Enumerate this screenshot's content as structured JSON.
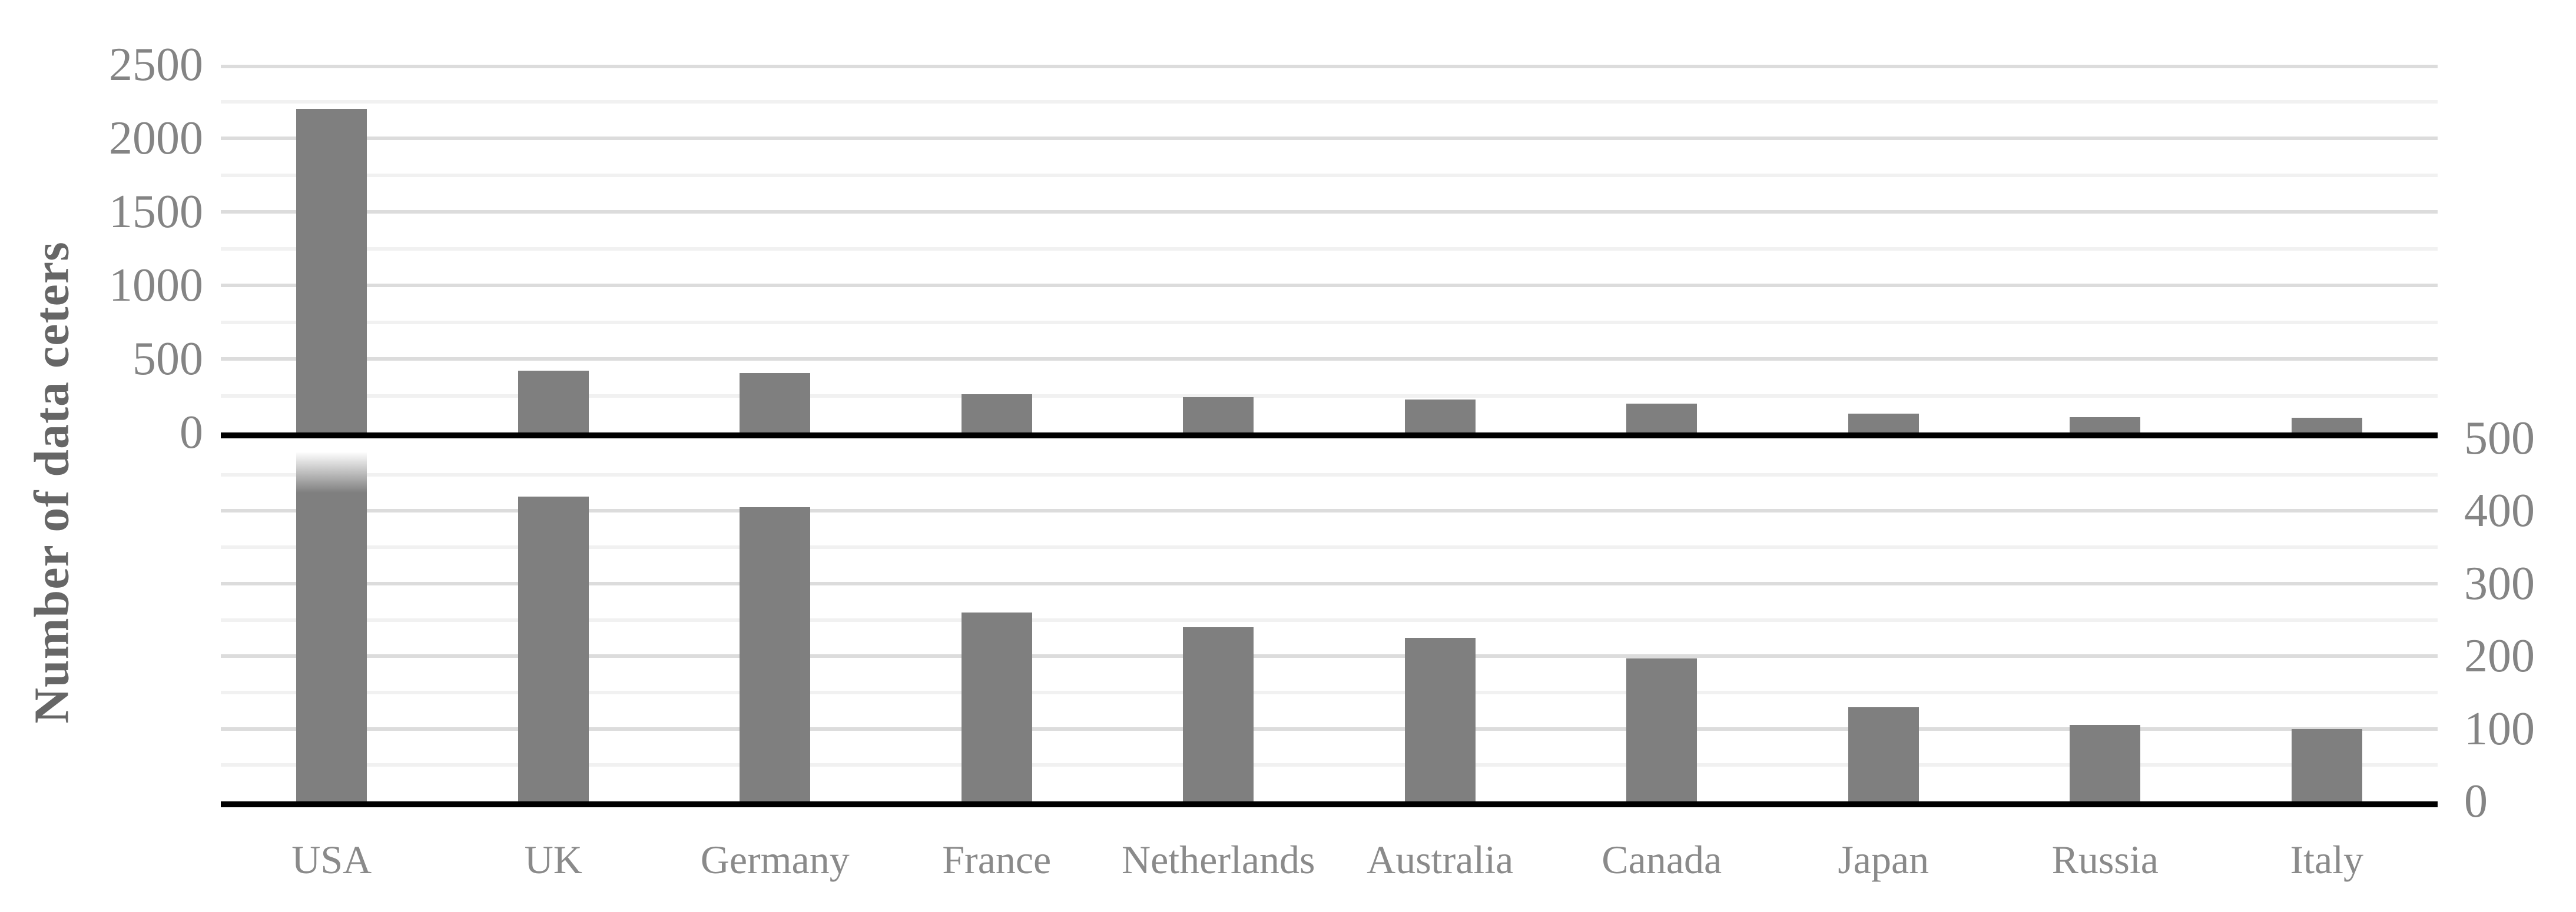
{
  "chart_data": {
    "type": "bar",
    "title": "",
    "ylabel": "Number of data ceters",
    "categories": [
      "USA",
      "UK",
      "Germany",
      "France",
      "Netherlands",
      "Australia",
      "Canada",
      "Japan",
      "Russia",
      "Italy"
    ],
    "values": [
      2200,
      420,
      405,
      260,
      240,
      225,
      197,
      130,
      105,
      100
    ],
    "grid": true,
    "legend": null,
    "panels": [
      {
        "position": "top",
        "axis_side": "left",
        "ylim": [
          0,
          2500
        ],
        "ticks": [
          2500,
          2000,
          1500,
          1000,
          500,
          0
        ],
        "grid_step": 250,
        "major_step": 500
      },
      {
        "position": "bottom",
        "axis_side": "right",
        "ylim": [
          0,
          500
        ],
        "ticks": [
          500,
          400,
          300,
          200,
          100,
          0
        ],
        "grid_step": 50,
        "major_step": 100,
        "overflow_note": "USA bar exceeds the 500 axis maximum and fades from white to gray at its top"
      }
    ],
    "colors": {
      "bar": "#7f7f7f",
      "grid_minor": "#f1f1f1",
      "grid_major": "#dcdcdc",
      "axis_line": "#000000",
      "tick_text": "#848484",
      "category_text": "#8a8a8a",
      "axis_title_text": "#666666"
    }
  }
}
